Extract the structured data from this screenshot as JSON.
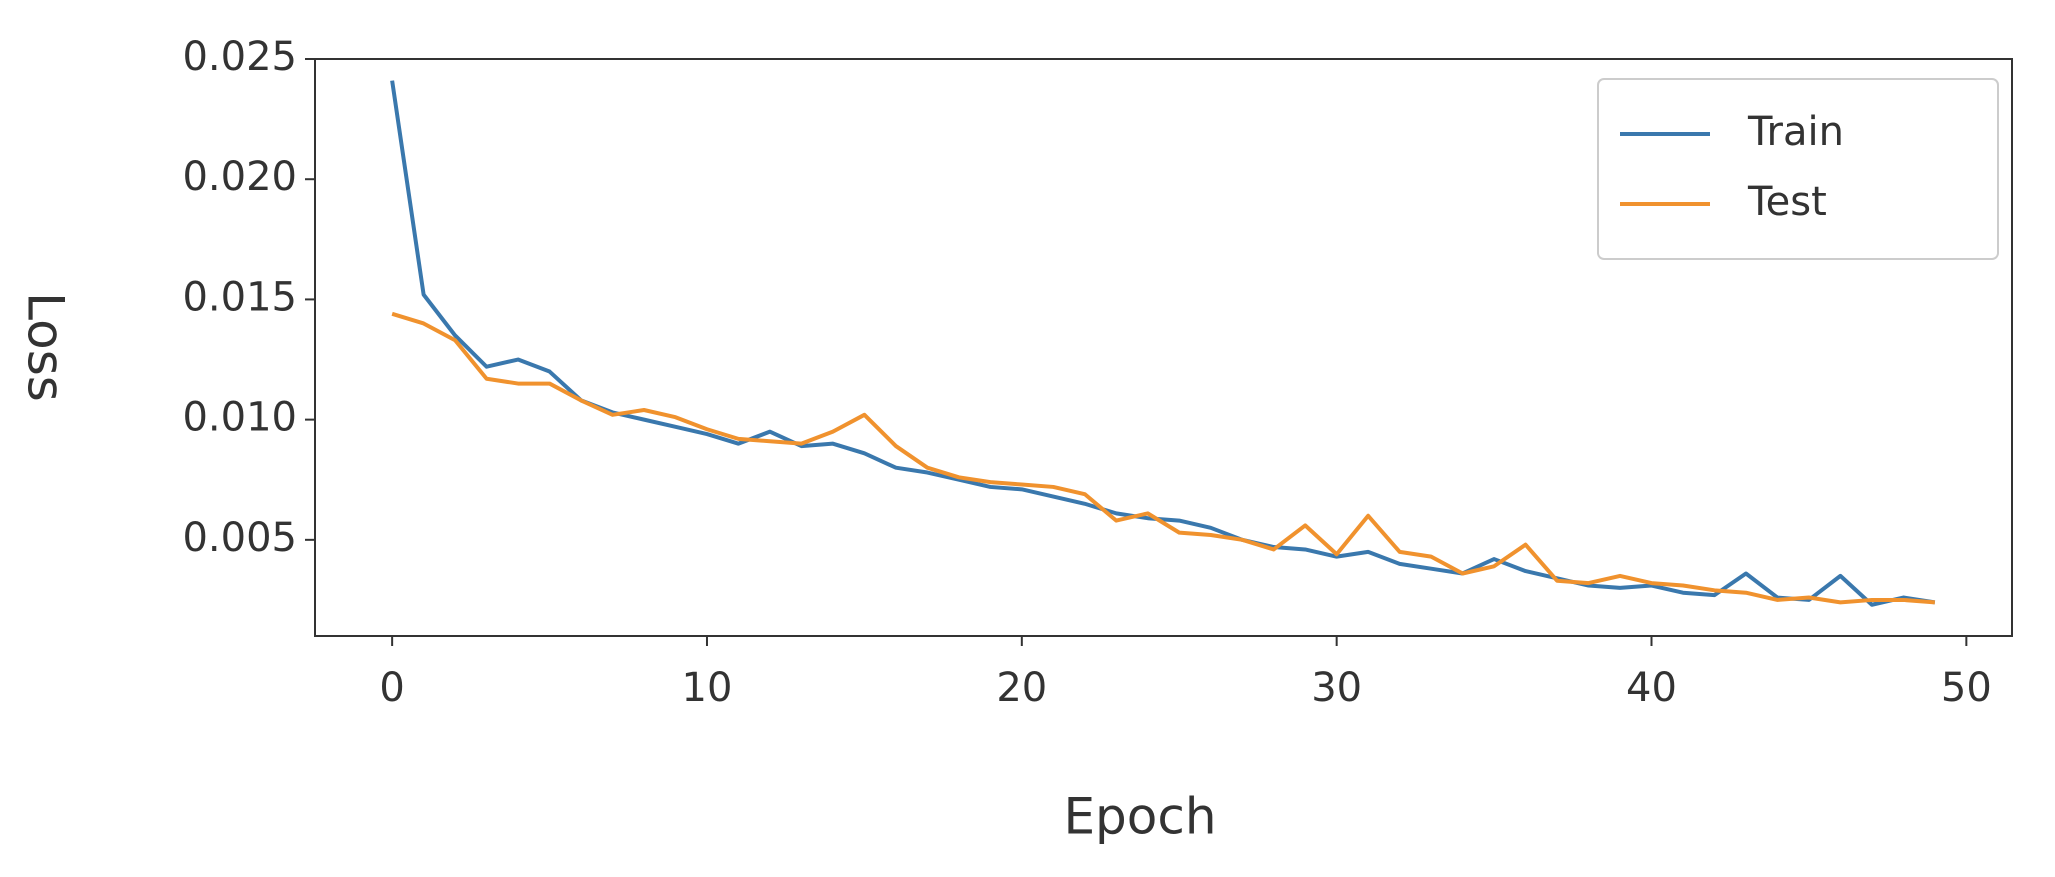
{
  "chart_data": {
    "type": "line",
    "x_label": "Epoch",
    "y_label": "Loss",
    "x": [
      0,
      1,
      2,
      3,
      4,
      5,
      6,
      7,
      8,
      9,
      10,
      11,
      12,
      13,
      14,
      15,
      16,
      17,
      18,
      19,
      20,
      21,
      22,
      23,
      24,
      25,
      26,
      27,
      28,
      29,
      30,
      31,
      32,
      33,
      34,
      35,
      36,
      37,
      38,
      39,
      40,
      41,
      42,
      43,
      44,
      45,
      46,
      47,
      48,
      49
    ],
    "series": [
      {
        "name": "Train",
        "color": "#3a78ad",
        "values": [
          0.0241,
          0.0152,
          0.0135,
          0.0122,
          0.0125,
          0.012,
          0.0108,
          0.0103,
          0.01,
          0.0097,
          0.0094,
          0.009,
          0.0095,
          0.0089,
          0.009,
          0.0086,
          0.008,
          0.0078,
          0.0075,
          0.0072,
          0.0071,
          0.0068,
          0.0065,
          0.0061,
          0.0059,
          0.0058,
          0.0055,
          0.005,
          0.0047,
          0.0046,
          0.0043,
          0.0045,
          0.004,
          0.0038,
          0.0036,
          0.0042,
          0.0037,
          0.0034,
          0.0031,
          0.003,
          0.0031,
          0.0028,
          0.0027,
          0.0036,
          0.0026,
          0.0025,
          0.0035,
          0.0023,
          0.0026,
          0.0024
        ]
      },
      {
        "name": "Test",
        "color": "#f0922e",
        "values": [
          0.0144,
          0.014,
          0.0133,
          0.0117,
          0.0115,
          0.0115,
          0.0108,
          0.0102,
          0.0104,
          0.0101,
          0.0096,
          0.0092,
          0.0091,
          0.009,
          0.0095,
          0.0102,
          0.0089,
          0.008,
          0.0076,
          0.0074,
          0.0073,
          0.0072,
          0.0069,
          0.0058,
          0.0061,
          0.0053,
          0.0052,
          0.005,
          0.0046,
          0.0056,
          0.0044,
          0.006,
          0.0045,
          0.0043,
          0.0036,
          0.0039,
          0.0048,
          0.0033,
          0.0032,
          0.0035,
          0.0032,
          0.0031,
          0.0029,
          0.0028,
          0.0025,
          0.0026,
          0.0024,
          0.0025,
          0.0025,
          0.0024
        ]
      }
    ],
    "xlim": [
      -2.45,
      51.45
    ],
    "xticks": [
      0,
      10,
      20,
      30,
      40,
      50
    ],
    "ylim": [
      0.001,
      0.025
    ],
    "yticks": [
      0.005,
      {
        "value": 0.01,
        "label": "0.010"
      },
      0.015,
      {
        "value": 0.02,
        "label": "0.020"
      },
      0.025
    ],
    "legend": "upper right",
    "grid": false
  }
}
